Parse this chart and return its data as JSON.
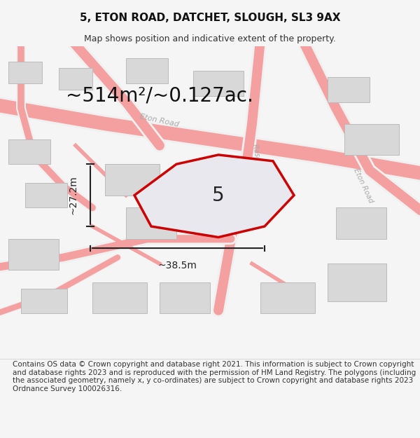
{
  "title": "5, ETON ROAD, DATCHET, SLOUGH, SL3 9AX",
  "subtitle": "Map shows position and indicative extent of the property.",
  "area_label": "~514m²/~0.127ac.",
  "property_number": "5",
  "dim_height": "~27.2m",
  "dim_width": "~38.5m",
  "footer": "Contains OS data © Crown copyright and database right 2021. This information is subject to Crown copyright and database rights 2023 and is reproduced with the permission of HM Land Registry. The polygons (including the associated geometry, namely x, y co-ordinates) are subject to Crown copyright and database rights 2023 Ordnance Survey 100026316.",
  "bg_color": "#f5f5f5",
  "map_bg": "#ffffff",
  "property_outline": "#cc0000",
  "road_color_light": "#f5a0a0",
  "building_fill": "#d8d8d8",
  "building_outline": "#bbbbbb",
  "street_label_color": "#aaaaaa",
  "title_fontsize": 11,
  "subtitle_fontsize": 9,
  "area_fontsize": 20,
  "dim_fontsize": 10,
  "footer_fontsize": 7.5
}
